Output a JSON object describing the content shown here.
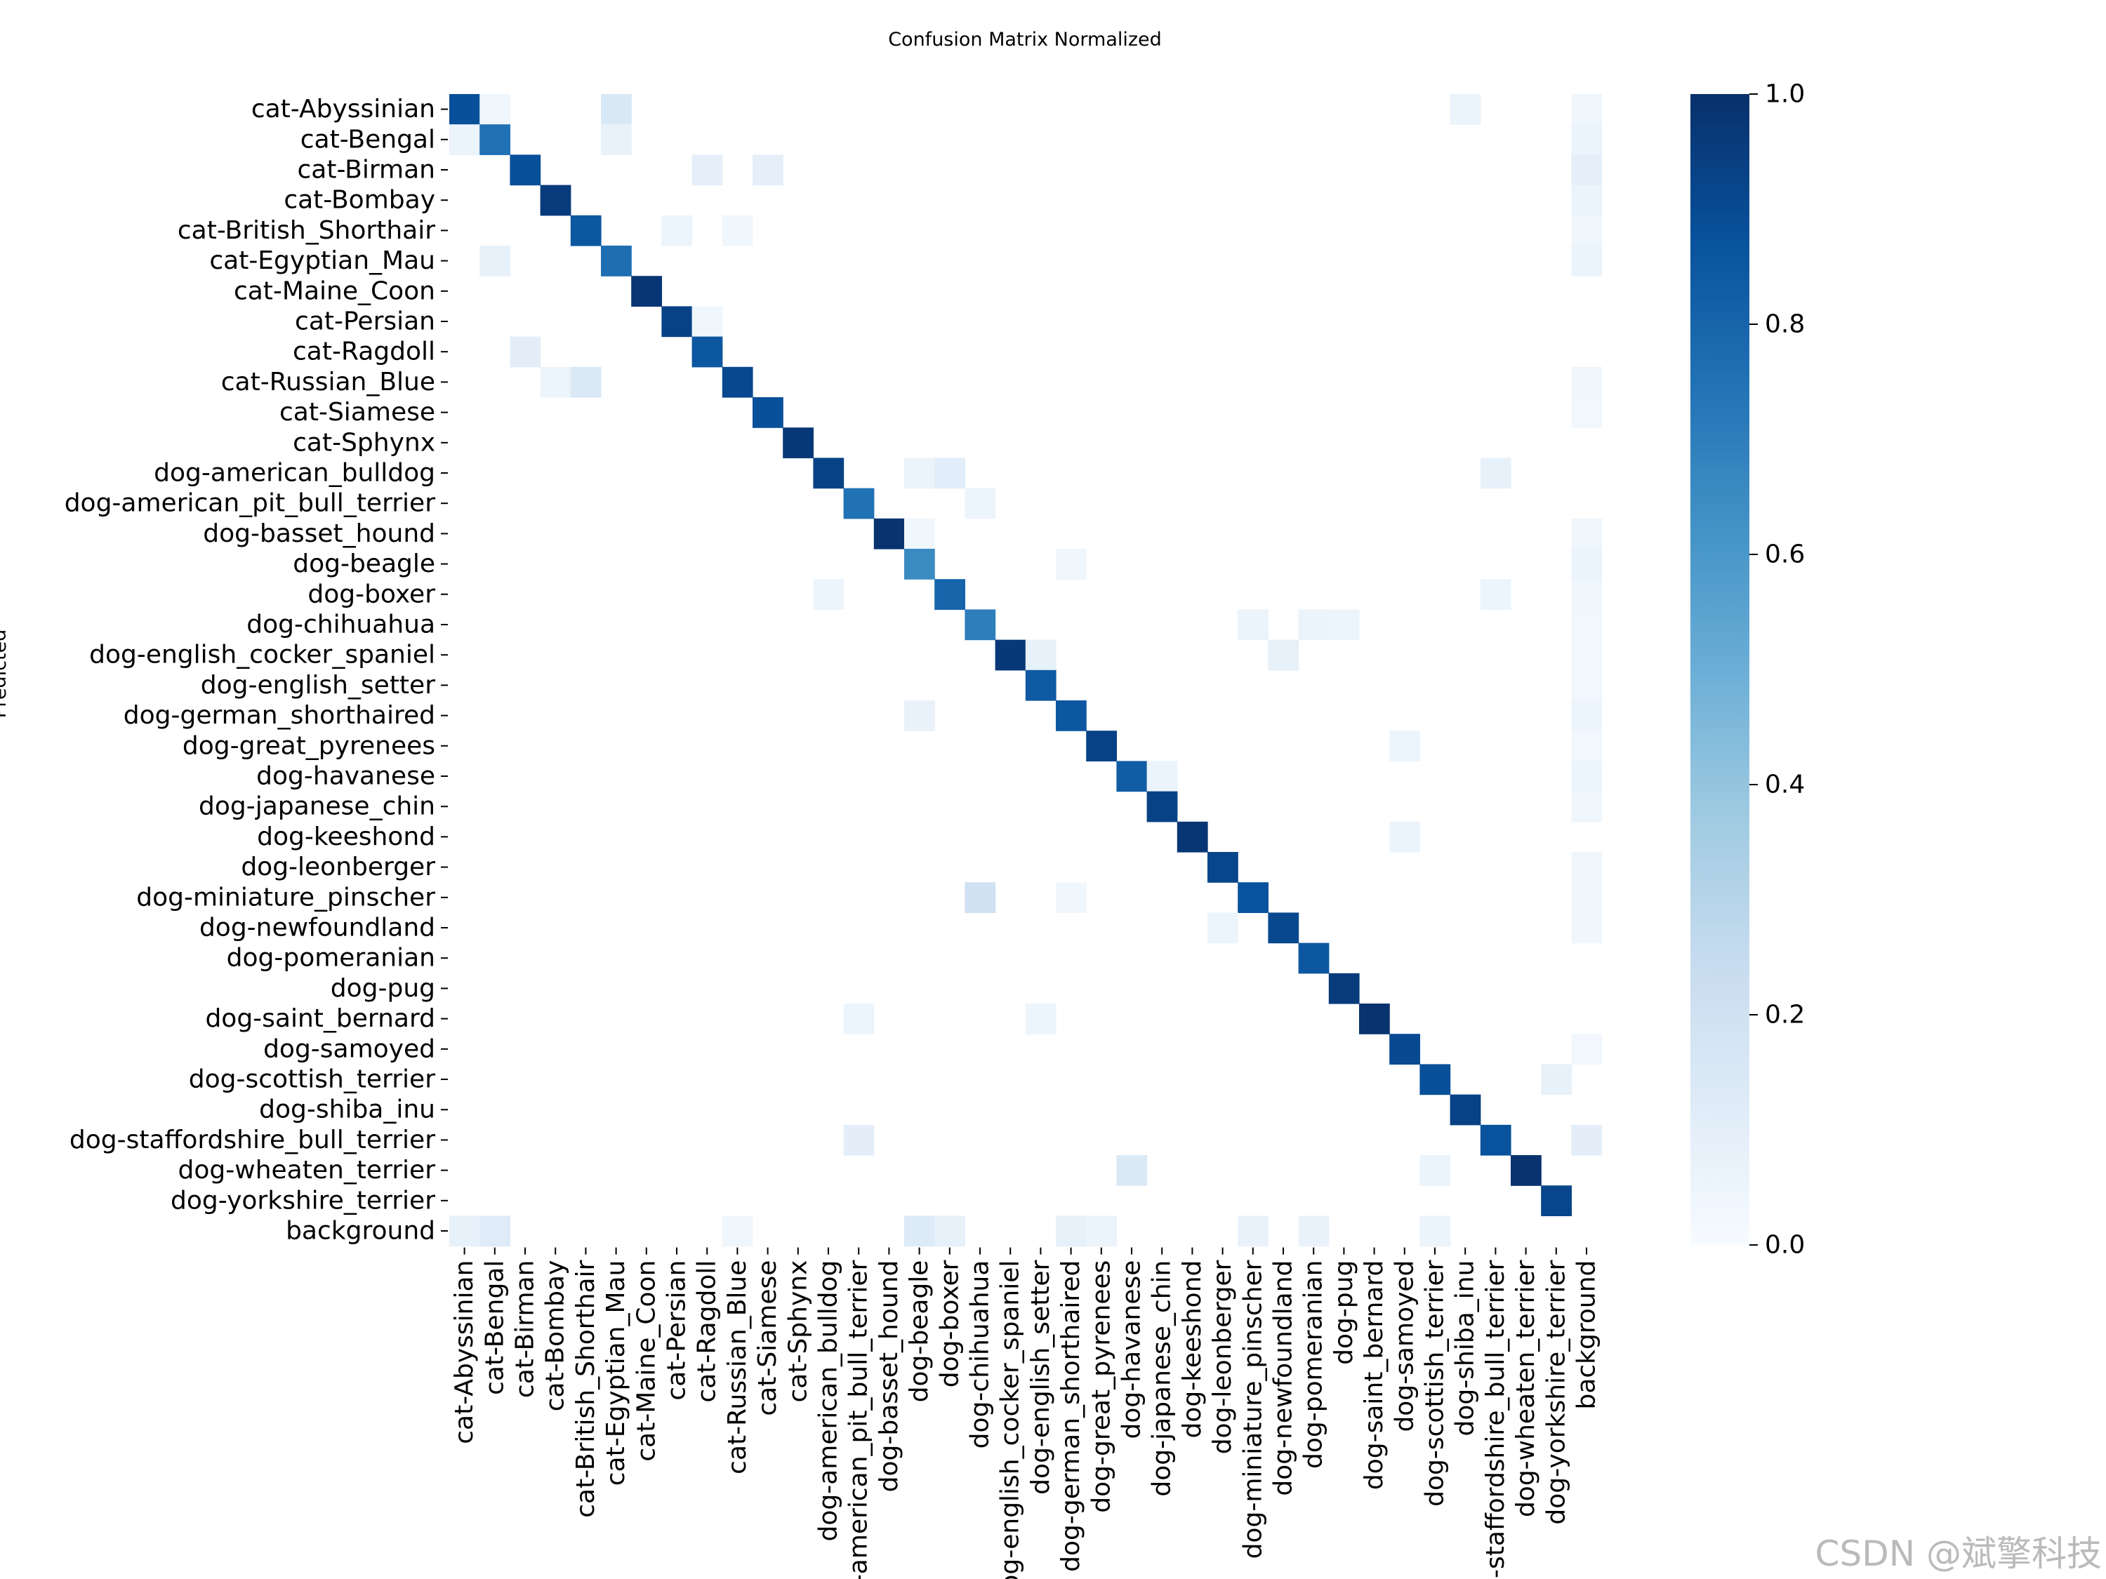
{
  "chart_data": {
    "type": "heatmap",
    "title": "Confusion Matrix Normalized",
    "ylabel": "Predicted",
    "xlabel": "",
    "colormap": [
      "#f7fbff",
      "#deebf7",
      "#c6dbef",
      "#9ecae1",
      "#6baed6",
      "#4292c6",
      "#2171b5",
      "#08519c",
      "#08306b"
    ],
    "clim": [
      0.0,
      1.0
    ],
    "colorbar_ticks": [
      "0.0",
      "0.2",
      "0.4",
      "0.6",
      "0.8",
      "1.0"
    ],
    "colorbar_values": [
      0.0,
      0.2,
      0.4,
      0.6,
      0.8,
      1.0
    ],
    "labels": [
      "cat-Abyssinian",
      "cat-Bengal",
      "cat-Birman",
      "cat-Bombay",
      "cat-British_Shorthair",
      "cat-Egyptian_Mau",
      "cat-Maine_Coon",
      "cat-Persian",
      "cat-Ragdoll",
      "cat-Russian_Blue",
      "cat-Siamese",
      "cat-Sphynx",
      "dog-american_bulldog",
      "dog-american_pit_bull_terrier",
      "dog-basset_hound",
      "dog-beagle",
      "dog-boxer",
      "dog-chihuahua",
      "dog-english_cocker_spaniel",
      "dog-english_setter",
      "dog-german_shorthaired",
      "dog-great_pyrenees",
      "dog-havanese",
      "dog-japanese_chin",
      "dog-keeshond",
      "dog-leonberger",
      "dog-miniature_pinscher",
      "dog-newfoundland",
      "dog-pomeranian",
      "dog-pug",
      "dog-saint_bernard",
      "dog-samoyed",
      "dog-scottish_terrier",
      "dog-shiba_inu",
      "dog-staffordshire_bull_terrier",
      "dog-wheaten_terrier",
      "dog-yorkshire_terrier",
      "background"
    ],
    "diagonal": [
      0.88,
      0.75,
      0.88,
      0.96,
      0.85,
      0.76,
      0.98,
      0.93,
      0.85,
      0.91,
      0.88,
      0.97,
      0.93,
      0.75,
      0.99,
      0.65,
      0.8,
      0.7,
      0.97,
      0.84,
      0.85,
      0.93,
      0.83,
      0.93,
      0.98,
      0.92,
      0.87,
      0.91,
      0.85,
      0.96,
      0.99,
      0.9,
      0.88,
      0.93,
      0.87,
      0.99,
      0.92,
      0.0
    ],
    "off_diagonal": [
      [
        0,
        1,
        0.04
      ],
      [
        0,
        5,
        0.15
      ],
      [
        0,
        33,
        0.06
      ],
      [
        0,
        37,
        0.04
      ],
      [
        1,
        0,
        0.06
      ],
      [
        1,
        5,
        0.07
      ],
      [
        1,
        37,
        0.06
      ],
      [
        2,
        8,
        0.09
      ],
      [
        2,
        10,
        0.09
      ],
      [
        2,
        37,
        0.09
      ],
      [
        3,
        37,
        0.06
      ],
      [
        4,
        7,
        0.05
      ],
      [
        4,
        9,
        0.04
      ],
      [
        4,
        37,
        0.04
      ],
      [
        5,
        1,
        0.08
      ],
      [
        5,
        37,
        0.06
      ],
      [
        7,
        8,
        0.04
      ],
      [
        8,
        2,
        0.1
      ],
      [
        9,
        3,
        0.05
      ],
      [
        9,
        4,
        0.14
      ],
      [
        9,
        37,
        0.04
      ],
      [
        10,
        37,
        0.03
      ],
      [
        12,
        15,
        0.06
      ],
      [
        12,
        16,
        0.11
      ],
      [
        12,
        34,
        0.08
      ],
      [
        13,
        17,
        0.05
      ],
      [
        14,
        15,
        0.04
      ],
      [
        14,
        37,
        0.04
      ],
      [
        15,
        20,
        0.04
      ],
      [
        15,
        37,
        0.06
      ],
      [
        16,
        12,
        0.05
      ],
      [
        16,
        34,
        0.05
      ],
      [
        16,
        37,
        0.04
      ],
      [
        17,
        26,
        0.06
      ],
      [
        17,
        28,
        0.06
      ],
      [
        17,
        29,
        0.05
      ],
      [
        17,
        37,
        0.03
      ],
      [
        18,
        19,
        0.08
      ],
      [
        18,
        27,
        0.08
      ],
      [
        18,
        37,
        0.03
      ],
      [
        19,
        37,
        0.03
      ],
      [
        20,
        15,
        0.07
      ],
      [
        20,
        37,
        0.05
      ],
      [
        21,
        31,
        0.05
      ],
      [
        21,
        37,
        0.03
      ],
      [
        22,
        23,
        0.06
      ],
      [
        22,
        37,
        0.05
      ],
      [
        23,
        37,
        0.04
      ],
      [
        24,
        31,
        0.06
      ],
      [
        25,
        37,
        0.04
      ],
      [
        26,
        17,
        0.2
      ],
      [
        26,
        20,
        0.04
      ],
      [
        26,
        37,
        0.04
      ],
      [
        27,
        25,
        0.05
      ],
      [
        27,
        37,
        0.04
      ],
      [
        30,
        13,
        0.05
      ],
      [
        30,
        19,
        0.05
      ],
      [
        31,
        37,
        0.03
      ],
      [
        32,
        36,
        0.08
      ],
      [
        34,
        13,
        0.1
      ],
      [
        34,
        37,
        0.1
      ],
      [
        35,
        22,
        0.14
      ],
      [
        35,
        32,
        0.06
      ],
      [
        37,
        0,
        0.08
      ],
      [
        37,
        1,
        0.12
      ],
      [
        37,
        9,
        0.04
      ],
      [
        37,
        15,
        0.13
      ],
      [
        37,
        16,
        0.08
      ],
      [
        37,
        20,
        0.08
      ],
      [
        37,
        21,
        0.06
      ],
      [
        37,
        26,
        0.07
      ],
      [
        37,
        28,
        0.07
      ],
      [
        37,
        32,
        0.06
      ]
    ]
  },
  "watermark": "CSDN @斌擎科技"
}
